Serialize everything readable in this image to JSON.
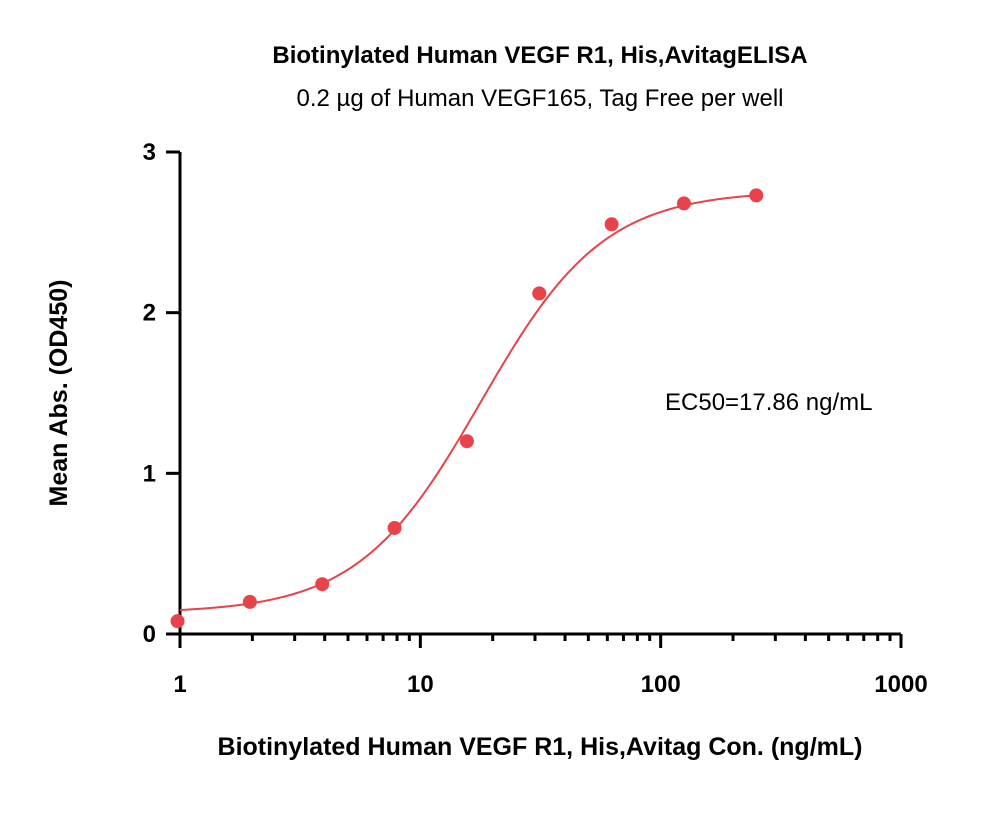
{
  "chart_data": {
    "type": "scatter",
    "title": "Biotinylated Human VEGF R1, His,AvitagELISA",
    "subtitle": "0.2 µg of Human VEGF165, Tag Free per well",
    "xlabel": "Biotinylated Human VEGF R1, His,Avitag Con. (ng/mL)",
    "ylabel": "Mean Abs. (OD450)",
    "xscale": "log",
    "xlim": [
      1,
      1000
    ],
    "ylim": [
      0,
      3
    ],
    "x_ticks": [
      "1",
      "10",
      "100",
      "1000"
    ],
    "y_ticks": [
      "0",
      "1",
      "2",
      "3"
    ],
    "grid": false,
    "color": "#e8424a",
    "series": [
      {
        "x": [
          0.977,
          1.953,
          3.906,
          7.813,
          15.625,
          31.25,
          62.5,
          125,
          250
        ],
        "y": [
          0.08,
          0.2,
          0.31,
          0.66,
          1.2,
          2.12,
          2.55,
          2.68,
          2.73
        ]
      }
    ],
    "fit": {
      "type": "4PL sigmoid",
      "bottom": 0.13,
      "top": 2.76,
      "ec50": 17.86,
      "hill": 1.7
    },
    "annotation": "EC50=17.86 ng/mL"
  }
}
